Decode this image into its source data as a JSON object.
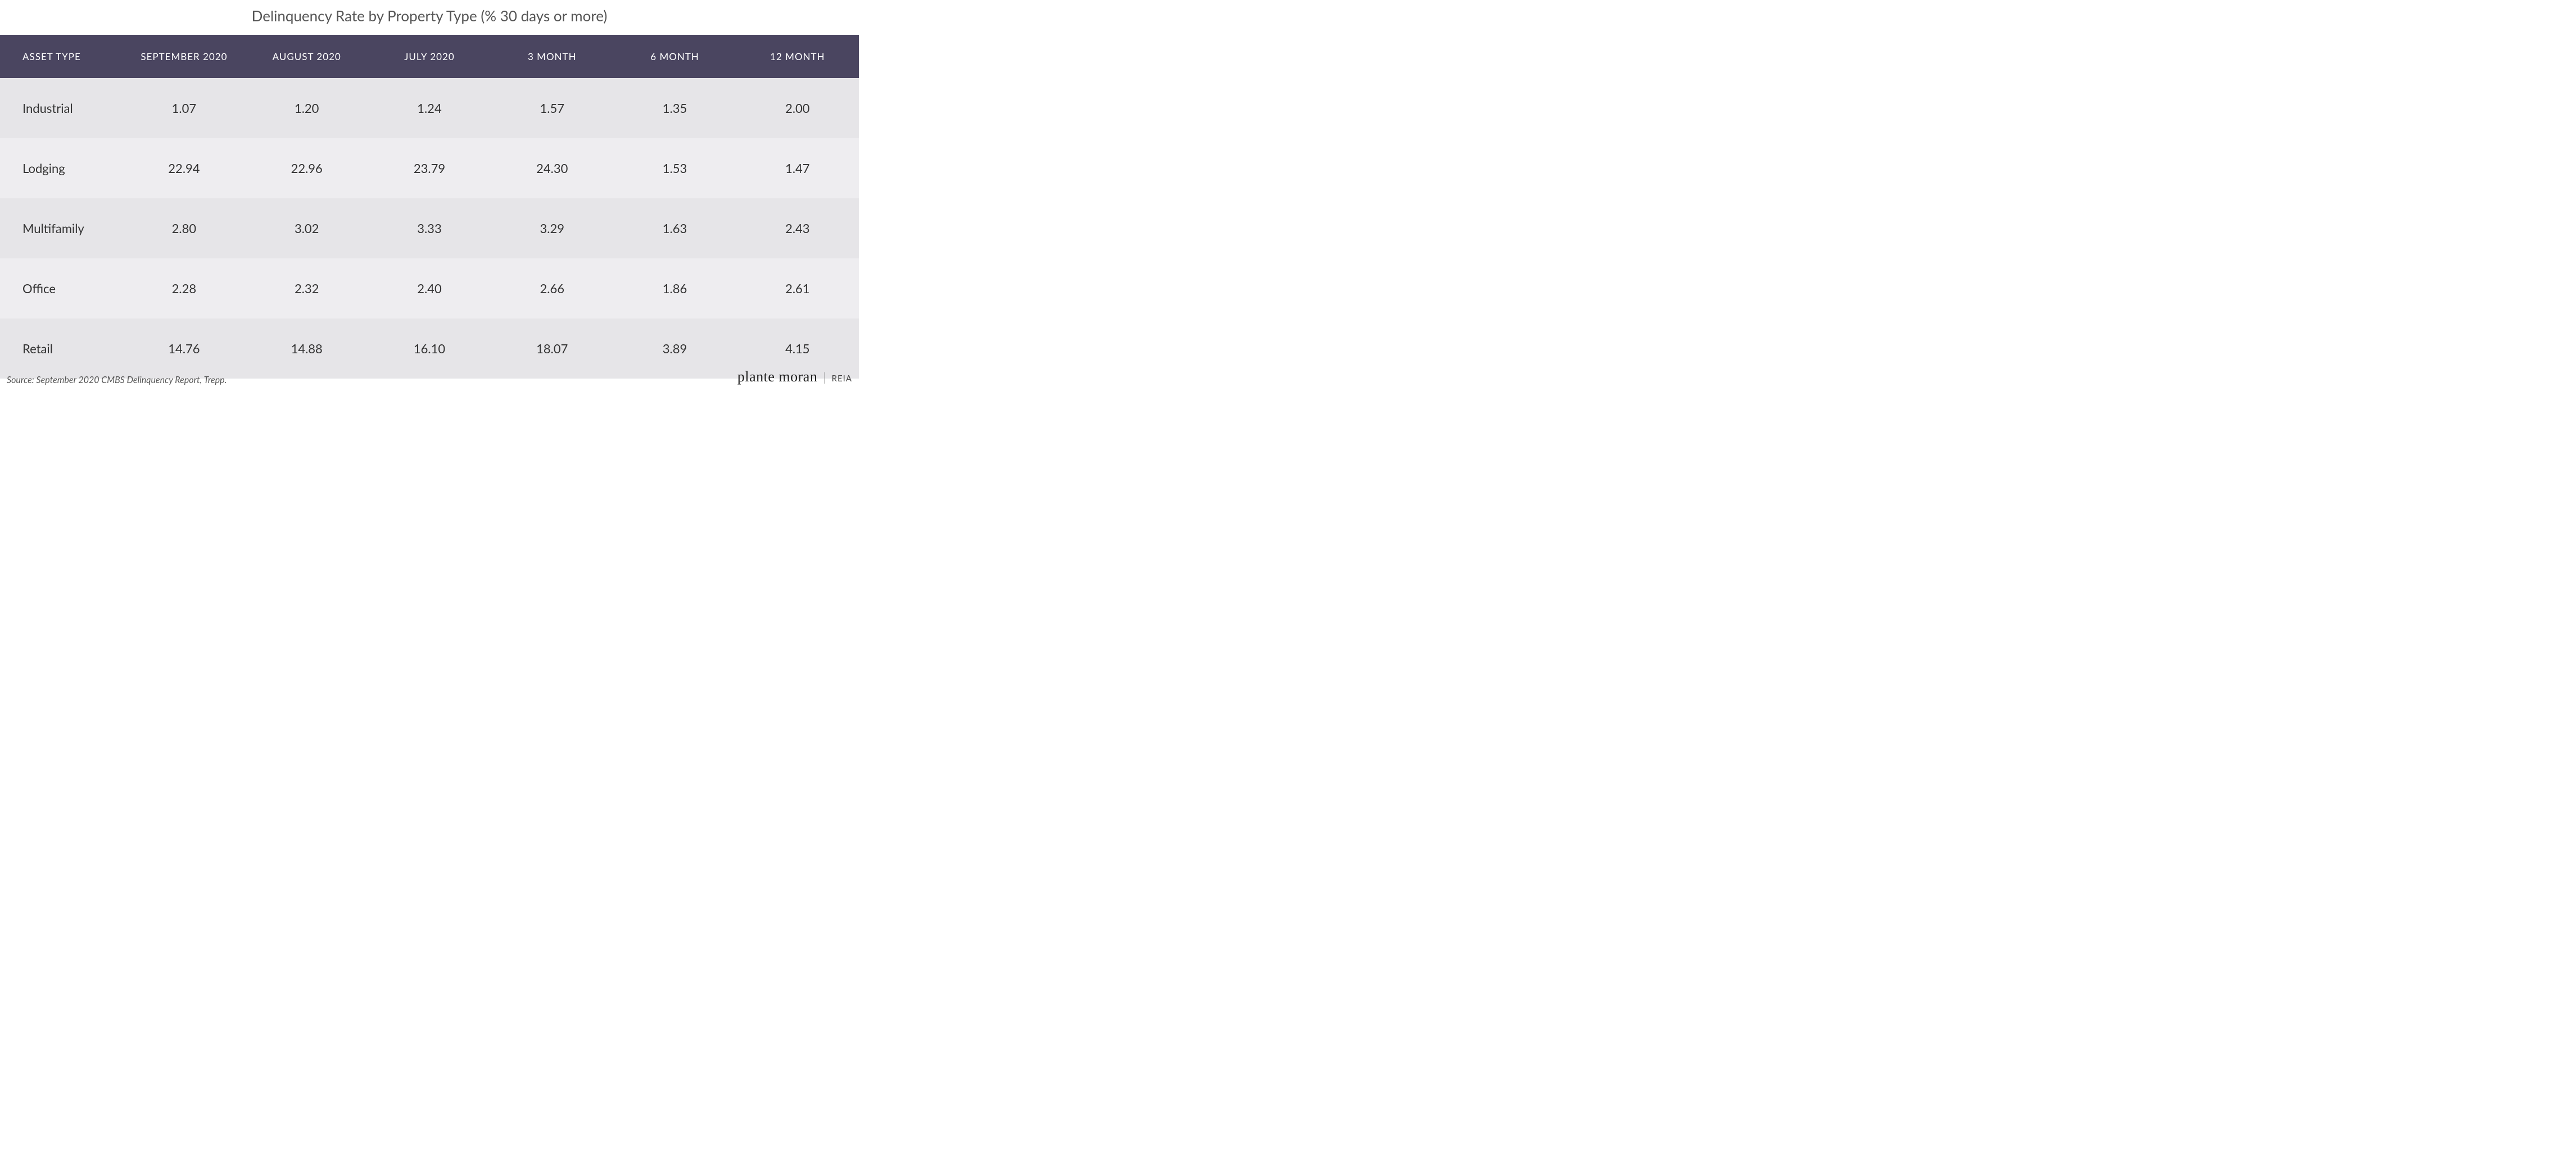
{
  "title": "Delinquency Rate by Property Type (% 30 days or more)",
  "table": {
    "type": "table",
    "header_bg": "#4a4560",
    "header_text_color": "#ffffff",
    "row_odd_bg": "#e6e5e8",
    "row_even_bg": "#eeedf0",
    "cell_text_color": "#333333",
    "title_color": "#555555",
    "title_fontsize": 26,
    "header_fontsize": 17,
    "cell_fontsize": 22,
    "columns": [
      "ASSET TYPE",
      "SEPTEMBER 2020",
      "AUGUST 2020",
      "JULY 2020",
      "3 MONTH",
      "6 MONTH",
      "12 MONTH"
    ],
    "column_alignment": [
      "left",
      "center",
      "center",
      "center",
      "center",
      "center",
      "center"
    ],
    "rows": [
      [
        "Industrial",
        "1.07",
        "1.20",
        "1.24",
        "1.57",
        "1.35",
        "2.00"
      ],
      [
        "Lodging",
        "22.94",
        "22.96",
        "23.79",
        "24.30",
        "1.53",
        "1.47"
      ],
      [
        "Multifamily",
        "2.80",
        "3.02",
        "3.33",
        "3.29",
        "1.63",
        "2.43"
      ],
      [
        "Office",
        "2.28",
        "2.32",
        "2.40",
        "2.66",
        "1.86",
        "2.61"
      ],
      [
        "Retail",
        "14.76",
        "14.88",
        "16.10",
        "18.07",
        "3.89",
        "4.15"
      ]
    ]
  },
  "source": "Source: September 2020 CMBS Delinquency Report, Trepp.",
  "brand": {
    "main": "plante moran",
    "sub": "REIA"
  }
}
